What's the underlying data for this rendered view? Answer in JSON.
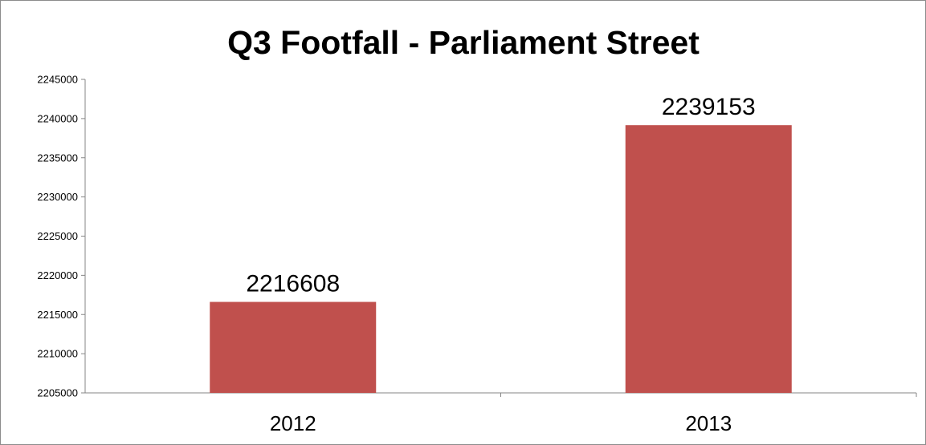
{
  "chart_data": {
    "type": "bar",
    "title": "Q3 Footfall - Parliament Street",
    "xlabel": "",
    "ylabel": "",
    "categories": [
      "2012",
      "2013"
    ],
    "values": [
      2216608,
      2239153
    ],
    "data_labels": [
      "2216608",
      "2239153"
    ],
    "ylim": [
      2205000,
      2245000
    ],
    "yticks": [
      2205000,
      2210000,
      2215000,
      2220000,
      2225000,
      2230000,
      2235000,
      2240000,
      2245000
    ],
    "ytick_labels": [
      "2205000",
      "2210000",
      "2215000",
      "2220000",
      "2225000",
      "2230000",
      "2235000",
      "2240000",
      "2245000"
    ],
    "bar_color": "#C0504D",
    "grid": false,
    "legend": "none"
  }
}
